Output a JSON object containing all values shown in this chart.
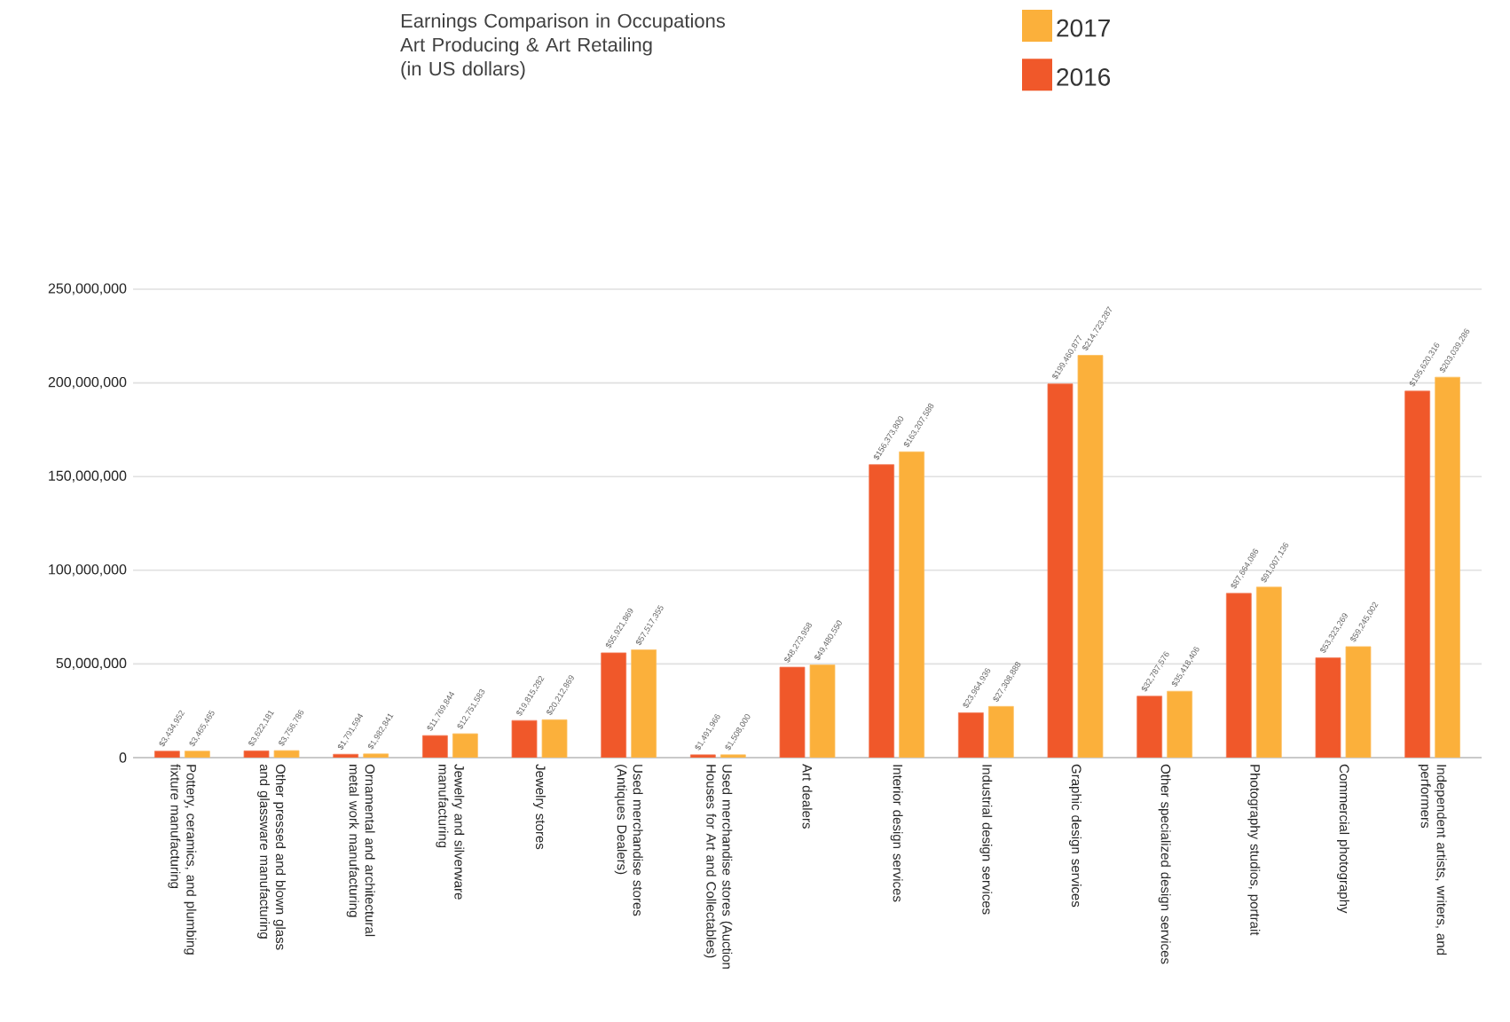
{
  "chart_data": {
    "type": "bar",
    "title": "Earnings Comparison in Occupations Art Producing & Art Retailing",
    "subtitle": "(in US dollars)",
    "categories": [
      "Pottery, ceramics, and plumbing fixture manufacturing",
      "Other pressed and blown glass and glassware manufacturing",
      "Ornamental and architectural metal work manufacturing",
      "Jewelry and silverware manufacturing",
      "Jewelry stores",
      "Used merchandise stores (Antiques Dealers)",
      "Used merchandise stores (Auction Houses for Art and Collectables)",
      "Art dealers",
      "Interior design services",
      "Industrial design services",
      "Graphic design services",
      "Other specialized design services",
      "Photography studios, portrait",
      "Commercial photography",
      "Independent artists, writers, and performers"
    ],
    "series": [
      {
        "name": "2016",
        "color": "#f0582a",
        "values": [
          3434952,
          3622181,
          1791594,
          11769844,
          19815282,
          55921869,
          1491966,
          48273958,
          156373800,
          23964936,
          199460877,
          32787576,
          87664086,
          53323269,
          195620316
        ],
        "value_labels": [
          "$3,434,952",
          "$3,622,181",
          "$1,791,594",
          "$11,769,844",
          "$19,815,282",
          "$55,921,869",
          "$1,491,966",
          "$48,273,958",
          "$156,373,800",
          "$23,964,936",
          "$199,460,877",
          "$32,787,576",
          "$87,664,086",
          "$53,323,269",
          "$195,620,316"
        ]
      },
      {
        "name": "2017",
        "color": "#fbb03b",
        "values": [
          3465465,
          3756786,
          1982841,
          12751583,
          20212869,
          57517355,
          1508000,
          49480550,
          163207588,
          27308888,
          214723287,
          35418406,
          91007136,
          59245002,
          203039286
        ],
        "value_labels": [
          "$3,465,465",
          "$3,756,786",
          "$1,982,841",
          "$12,751,583",
          "$20,212,869",
          "$57,517,355",
          "$1,508,000",
          "$49,480,550",
          "$163,207,588",
          "$27,308,888",
          "$214,723,287",
          "$35,418,406",
          "$91,007,136",
          "$59,245,002",
          "$203,039,286"
        ]
      }
    ],
    "ylim": [
      0,
      250000000
    ],
    "yticks": [
      0,
      {
        "value": 50000000,
        "label": "50,000,000"
      },
      {
        "value": 100000000,
        "label": "100,000,000"
      },
      {
        "value": 150000000,
        "label": "150,000,000"
      },
      {
        "value": 200000000,
        "label": "200,000,000"
      },
      {
        "value": 250000000,
        "label": "250,000,000"
      }
    ],
    "grid": "y",
    "legend": "top"
  }
}
